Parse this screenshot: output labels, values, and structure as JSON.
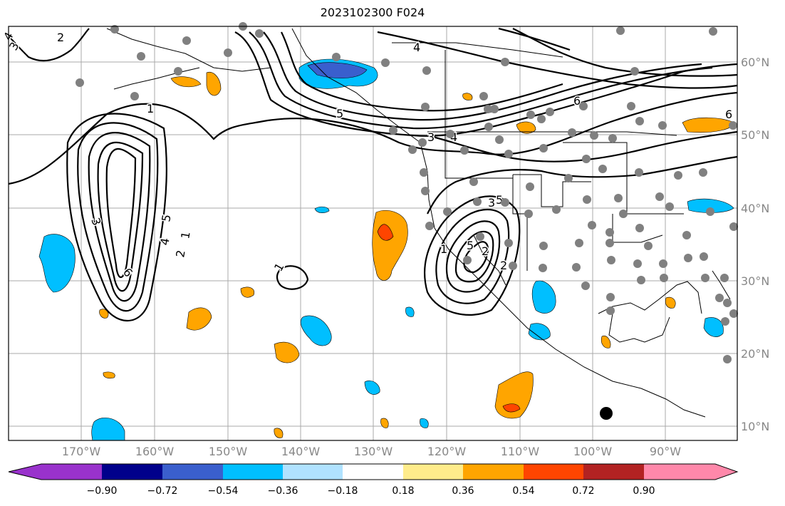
{
  "title": "2023102300 F024",
  "lat_labels": [
    "60°N",
    "50°N",
    "40°N",
    "30°N",
    "20°N",
    "10°N"
  ],
  "lon_labels": [
    "170°W",
    "160°W",
    "150°W",
    "140°W",
    "130°W",
    "120°W",
    "110°W",
    "100°W",
    "90°W"
  ],
  "colorbar": {
    "colors": [
      "#9932cc",
      "#00008b",
      "#3a5fcd",
      "#00bfff",
      "#b0e2ff",
      "#ffffff",
      "#ffec8b",
      "#ffa500",
      "#ff4500",
      "#b22222",
      "#ff88aa"
    ],
    "tick_labels": [
      "−0.90",
      "−0.72",
      "−0.54",
      "−0.36",
      "−0.18",
      "0.18",
      "0.36",
      "0.54",
      "0.72",
      "0.90"
    ]
  },
  "contour_labels": [
    "1",
    "2",
    "3",
    "4",
    "5",
    "6",
    "1",
    "2",
    "3",
    "4",
    "5",
    "6",
    "1",
    "2",
    "3",
    "4",
    "5",
    "1",
    "2",
    "3",
    "4",
    "5",
    "6",
    "2",
    "3",
    "4"
  ],
  "colors": {
    "station": "#808080",
    "grid": "#aaaaaa",
    "contour": "#000000",
    "coast": "#000000"
  }
}
